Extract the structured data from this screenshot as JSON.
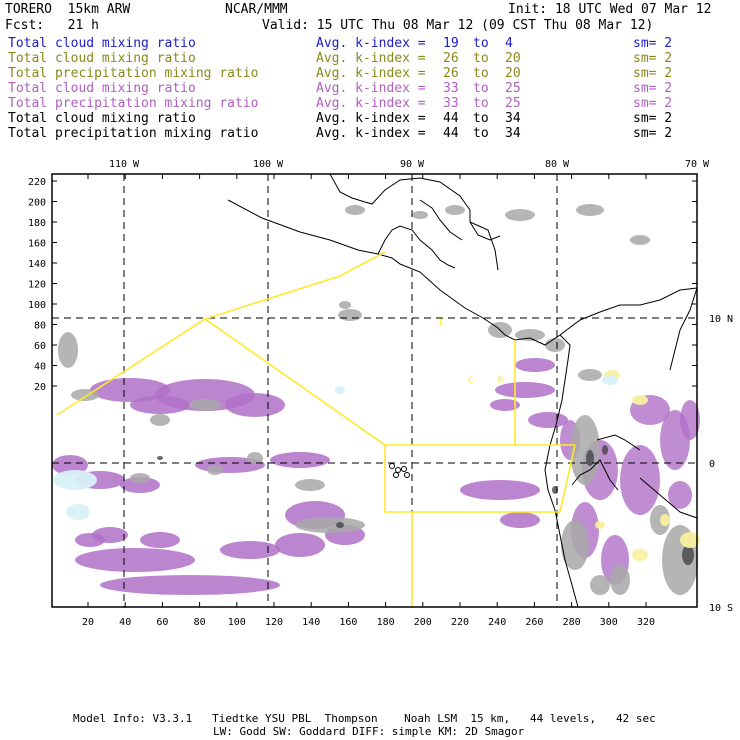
{
  "header": {
    "model": "TORERO  15km ARW",
    "org": "NCAR/MMM",
    "init": "Init: 18 UTC Wed 07 Mar 12",
    "fcst": "Fcst:   21 h",
    "valid": "Valid: 15 UTC Thu 08 Mar 12 (09 CST Thu 08 Mar 12)"
  },
  "legend": [
    {
      "field": "Total cloud mixing ratio",
      "kindex": "Avg. k-index =",
      "from": "19",
      "to_word": "to",
      "to": "4",
      "sm": "sm= 2",
      "color": "#1c1cc8"
    },
    {
      "field": "Total cloud mixing ratio",
      "kindex": "Avg. k-index =",
      "from": "26",
      "to_word": "to",
      "to": "20",
      "sm": "sm= 2",
      "color": "#8a8a1a"
    },
    {
      "field": "Total precipitation mixing ratio",
      "kindex": "Avg. k-index =",
      "from": "26",
      "to_word": "to",
      "to": "20",
      "sm": "sm= 2",
      "color": "#8a8a1a"
    },
    {
      "field": "Total cloud mixing ratio",
      "kindex": "Avg. k-index =",
      "from": "33",
      "to_word": "to",
      "to": "25",
      "sm": "sm= 2",
      "color": "#b060c0"
    },
    {
      "field": "Total precipitation mixing ratio",
      "kindex": "Avg. k-index =",
      "from": "33",
      "to_word": "to",
      "to": "25",
      "sm": "sm= 2",
      "color": "#b060c0"
    },
    {
      "field": "Total cloud mixing ratio",
      "kindex": "Avg. k-index =",
      "from": "44",
      "to_word": "to",
      "to": "34",
      "sm": "sm= 2",
      "color": "#000000"
    },
    {
      "field": "Total precipitation mixing ratio",
      "kindex": "Avg. k-index =",
      "from": "44",
      "to_word": "to",
      "to": "34",
      "sm": "sm= 2",
      "color": "#000000"
    }
  ],
  "map": {
    "top_lon_labels": [
      "110 W",
      "100 W",
      "90 W",
      "80 W",
      "70 W"
    ],
    "right_lat_labels": [
      "10 N",
      "0",
      "10 S"
    ],
    "left_y_ticks": [
      "220",
      "200",
      "180",
      "160",
      "140",
      "120",
      "100",
      "80",
      "60",
      "40",
      "20"
    ],
    "bottom_x_ticks": [
      "20",
      "40",
      "60",
      "80",
      "100",
      "120",
      "140",
      "160",
      "180",
      "200",
      "220",
      "240",
      "260",
      "280",
      "300",
      "320"
    ],
    "region_letters": [
      "I",
      "C",
      "R"
    ],
    "colors": {
      "frame": "#000000",
      "grid": "#000000",
      "boundary": "#ffe82a",
      "coast": "#000000",
      "cloud_gray": "#a8a8a8",
      "precip_purple": "#b070c8",
      "yellow_shade": "#f8f0a0",
      "lightblue_shade": "#d8f0f8"
    }
  },
  "footer": {
    "line1": "Model Info: V3.3.1   Tiedtke YSU PBL  Thompson    Noah LSM  15 km,   44 levels,   42 sec",
    "line2": "LW: Godd SW: Goddard DIFF: simple KM: 2D Smagor"
  }
}
